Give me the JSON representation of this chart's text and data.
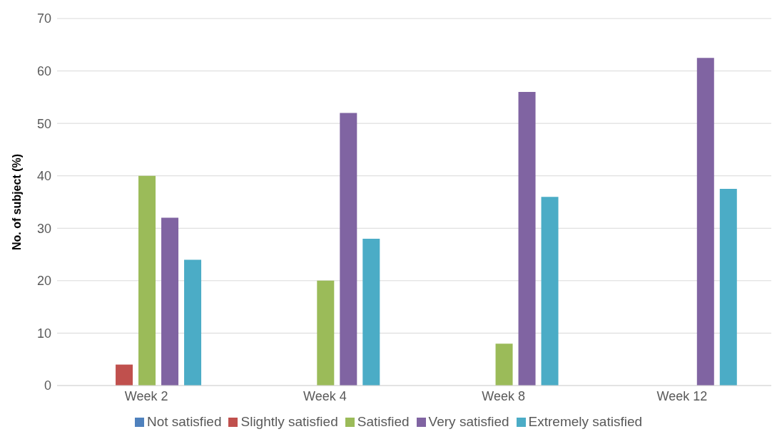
{
  "chart_data": {
    "type": "bar",
    "ylabel": "No. of subject (%)",
    "categories": [
      "Week 2",
      "Week 4",
      "Week 8",
      "Week 12"
    ],
    "series": [
      {
        "name": "Not satisfied",
        "color": "#4f81bd",
        "values": [
          0,
          0,
          0,
          0
        ]
      },
      {
        "name": "Slightly satisfied",
        "color": "#c0504d",
        "values": [
          4,
          0,
          0,
          0
        ]
      },
      {
        "name": "Satisfied",
        "color": "#9bbb59",
        "values": [
          40,
          20,
          8,
          0
        ]
      },
      {
        "name": "Very satisfied",
        "color": "#8064a2",
        "values": [
          32,
          52,
          56,
          62.5
        ]
      },
      {
        "name": "Extremely satisfied",
        "color": "#4bacc6",
        "values": [
          24,
          28,
          36,
          37.5
        ]
      }
    ],
    "ylim": [
      0,
      70
    ],
    "yticks": [
      0,
      10,
      20,
      30,
      40,
      50,
      60,
      70
    ],
    "grid": "y",
    "legend": "bottom"
  }
}
